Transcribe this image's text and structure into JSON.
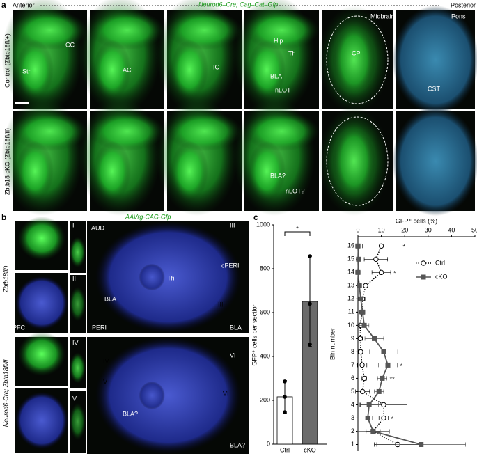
{
  "panel_a": {
    "letter": "a",
    "anterior": "Anterior",
    "construct": "Neurod6–Cre; Cag–Cat–Gfp",
    "posterior": "Posterior",
    "row_labels": [
      "Control (Zbtb18fl/+)",
      "Zbtb18 cKO (Zbtb18fl/fl)"
    ],
    "annotations": [
      "Str",
      "CC",
      "AC",
      "IC",
      "Hip",
      "Th",
      "BLA",
      "nLOT",
      "Midbrain",
      "CP",
      "Pons",
      "CST",
      "BLA?",
      "nLOT?"
    ]
  },
  "panel_b": {
    "letter": "b",
    "construct": "AAVrg-CAG-Gfp",
    "row_labels": [
      "Zbtb18fl/+",
      "Neurod6-Cre; Zbtb18fl/fl"
    ],
    "annotations": [
      "PFC",
      "AUD",
      "Th",
      "BLA",
      "cPERI",
      "PERI",
      "BLA?"
    ],
    "insets": [
      "I",
      "II",
      "III",
      "IV",
      "V",
      "VI"
    ]
  },
  "panel_c": {
    "letter": "c"
  },
  "chart_data": [
    {
      "type": "bar",
      "categories": [
        "Ctrl",
        "cKO"
      ],
      "values": [
        216,
        651
      ],
      "errors": [
        74,
        206
      ],
      "points": [
        [
          286,
          216,
          146
        ],
        [
          857,
          640,
          455
        ]
      ],
      "colors": [
        "#ffffff",
        "#6b6b6b"
      ],
      "ylabel": "GFP⁺ cells per section",
      "ylim": [
        0,
        1000
      ],
      "yticks": [
        0,
        200,
        400,
        600,
        800,
        1000
      ],
      "annotation": "*"
    },
    {
      "type": "line",
      "xlabel": "GFP⁺ cells (%)",
      "ylabel": "Bin number",
      "y": [
        1,
        2,
        3,
        4,
        5,
        6,
        7,
        8,
        9,
        10,
        11,
        12,
        13,
        14,
        15,
        16
      ],
      "series": [
        {
          "name": "Ctrl",
          "color": "#000000",
          "marker": "circle",
          "dashed": true,
          "values": [
            17,
            6.5,
            11,
            11,
            2,
            2.7,
            1.8,
            1.2,
            1,
            1,
            1.8,
            2,
            3.3,
            10,
            7.7,
            10
          ],
          "errors": [
            10,
            3,
            2,
            10,
            3,
            1,
            2,
            1,
            1,
            1,
            1,
            1,
            1,
            4,
            5,
            8
          ]
        },
        {
          "name": "cKO",
          "color": "#555555",
          "marker": "square",
          "dashed": false,
          "values": [
            27,
            6.5,
            4.2,
            4.8,
            9,
            10.4,
            12.8,
            11,
            7,
            2.7,
            2,
            1.2,
            0.6,
            0,
            0.3,
            0
          ],
          "errors": [
            19,
            7,
            2,
            4,
            2,
            2,
            4,
            6,
            4,
            2,
            1,
            1,
            1,
            1,
            1,
            1
          ]
        }
      ],
      "xlim": [
        0,
        50
      ],
      "xticks": [
        0,
        10,
        20,
        30,
        40,
        50
      ],
      "ylim": [
        0.5,
        16.7
      ],
      "yticks": [
        1,
        2,
        3,
        4,
        5,
        6,
        7,
        8,
        9,
        10,
        11,
        12,
        13,
        14,
        15,
        16
      ],
      "stars": [
        {
          "bin": 16,
          "label": "*"
        },
        {
          "bin": 14,
          "label": "*"
        },
        {
          "bin": 7,
          "label": "*"
        },
        {
          "bin": 6,
          "label": "**"
        },
        {
          "bin": 3,
          "label": "*"
        }
      ],
      "legend": "right"
    }
  ]
}
